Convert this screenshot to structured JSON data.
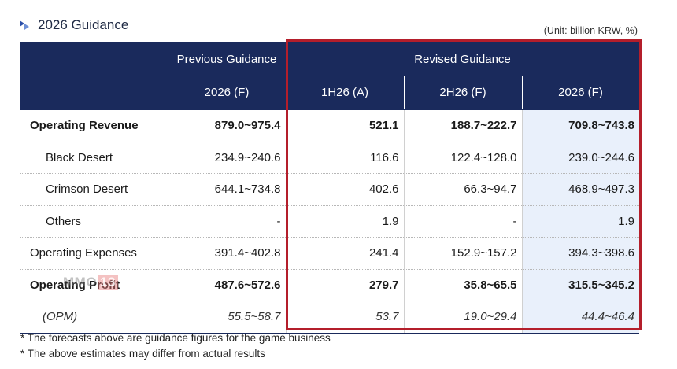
{
  "header": {
    "title": "2026 Guidance",
    "unit": "(Unit: billion KRW, %)",
    "icon": "chevron-double-icon"
  },
  "table": {
    "group_headers": {
      "previous": "Previous Guidance",
      "revised": "Revised Guidance"
    },
    "sub_headers": [
      "2026 (F)",
      "1H26 (A)",
      "2H26 (F)",
      "2026 (F)"
    ],
    "rows": [
      {
        "label": "Operating Revenue",
        "values": [
          "879.0~975.4",
          "521.1",
          "188.7~222.7",
          "709.8~743.8"
        ]
      },
      {
        "label": "Black Desert",
        "values": [
          "234.9~240.6",
          "116.6",
          "122.4~128.0",
          "239.0~244.6"
        ]
      },
      {
        "label": "Crimson Desert",
        "values": [
          "644.1~734.8",
          "402.6",
          "66.3~94.7",
          "468.9~497.3"
        ]
      },
      {
        "label": "Others",
        "values": [
          "-",
          "1.9",
          "-",
          "1.9"
        ]
      },
      {
        "label": "Operating Expenses",
        "values": [
          "391.4~402.8",
          "241.4",
          "152.9~157.2",
          "394.3~398.6"
        ]
      },
      {
        "label": "Operating Profit",
        "values": [
          "487.6~572.6",
          "279.7",
          "35.8~65.5",
          "315.5~345.2"
        ]
      },
      {
        "label": "(OPM)",
        "values": [
          "55.5~58.7",
          "53.7",
          "19.0~29.4",
          "44.4~46.4"
        ]
      }
    ]
  },
  "watermark": {
    "text": "MMO",
    "number": "13"
  },
  "notes": [
    "* The forecasts above are guidance figures for the game business",
    "* The above estimates may differ from actual results"
  ],
  "colors": {
    "header_bg": "#1a2a5c",
    "highlight_box": "#b41e2b",
    "highlight_col": "#e9f0fb"
  }
}
